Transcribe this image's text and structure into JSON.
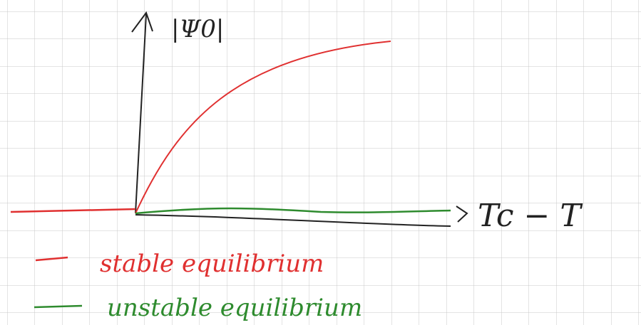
{
  "axes": {
    "y_label": "|Ψ0|",
    "x_label": "Tc − T"
  },
  "legend": [
    {
      "label": "stable equilibrium"
    },
    {
      "label": "unstable equilibrium"
    }
  ]
}
